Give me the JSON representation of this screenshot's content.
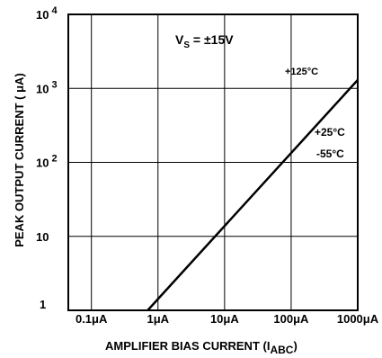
{
  "chart_data": {
    "type": "line",
    "xscale": "log",
    "yscale": "log",
    "x_ticks": [
      {
        "value": 0.1,
        "label": "0.1μA"
      },
      {
        "value": 1,
        "label": "1μA"
      },
      {
        "value": 10,
        "label": "10μA"
      },
      {
        "value": 100,
        "label": "100μA"
      },
      {
        "value": 1000,
        "label": "1000μA"
      }
    ],
    "y_ticks": [
      {
        "value": 1,
        "label": "1",
        "exp": ""
      },
      {
        "value": 10,
        "label": "10",
        "exp": ""
      },
      {
        "value": 100,
        "label": "10",
        "exp": "2"
      },
      {
        "value": 1000,
        "label": "10",
        "exp": "3"
      },
      {
        "value": 10000,
        "label": "10",
        "exp": "4"
      }
    ],
    "xlim": [
      0.045,
      1000
    ],
    "ylim": [
      1,
      10000
    ],
    "grid": true,
    "xlabel": {
      "main": "AMPLIFIER BIAS CURRENT (I",
      "sub": "ABC",
      "close": ")"
    },
    "ylabel": "PEAK OUTPUT CURRENT  ( μA)",
    "series": [
      {
        "x": [
          0.7,
          1000
        ],
        "y": [
          1,
          1300
        ]
      }
    ],
    "annotations": {
      "condition": {
        "main": "V",
        "sub": "S",
        "rest": " = ±15V"
      },
      "temp_high": "+125°C",
      "temp_mid": "+25°C",
      "temp_low": "-55°C"
    }
  }
}
